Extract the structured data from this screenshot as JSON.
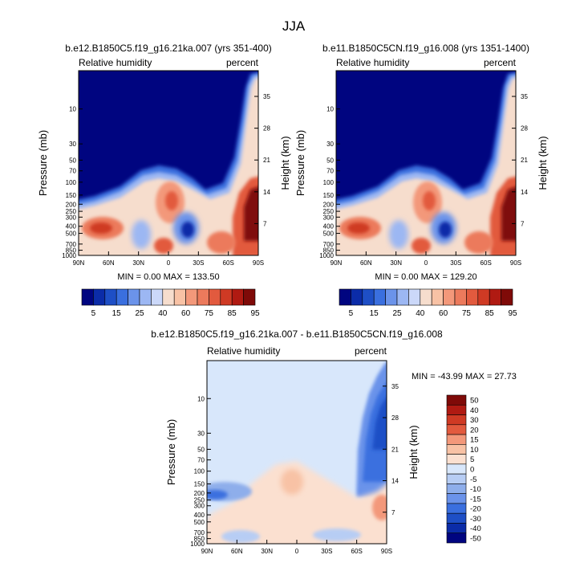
{
  "figure": {
    "title": "JJA"
  },
  "panels": [
    {
      "id": "panel-left",
      "case_title": "b.e12.B1850C5.f19_g16.21ka.007 (yrs 351-400)",
      "left_label": "Relative humidity",
      "right_label": "percent",
      "y_label": "Pressure (mb)",
      "y2_label": "Height (km)",
      "stats": "MIN =   0.00  MAX = 133.50"
    },
    {
      "id": "panel-right",
      "case_title": "b.e11.B1850C5CN.f19_g16.008 (yrs 1351-1400)",
      "left_label": "Relative humidity",
      "right_label": "percent",
      "y_label": "Pressure (mb)",
      "y2_label": "Height (km)",
      "stats": "MIN =   0.00  MAX = 129.20"
    },
    {
      "id": "panel-diff",
      "case_title": "b.e12.B1850C5.f19_g16.21ka.007 - b.e11.B1850C5CN.f19_g16.008",
      "left_label": "Relative humidity",
      "right_label": "percent",
      "y_label": "Pressure (mb)",
      "y2_label": "Height (km)",
      "stats": "MIN = -43.99  MAX =  27.73"
    }
  ],
  "chart_data": [
    {
      "type": "heatmap",
      "panel": "panel-left",
      "title": "b.e12.B1850C5.f19_g16.21ka.007 (yrs 351-400)",
      "variable": "Relative humidity",
      "units": "percent",
      "xlabel": "",
      "ylabel": "Pressure (mb)",
      "y2label": "Height (km)",
      "x_ticks": [
        "90N",
        "60N",
        "30N",
        "0",
        "30S",
        "60S",
        "90S"
      ],
      "y_ticks": [
        "10",
        "30",
        "50",
        "70",
        "100",
        "150",
        "200",
        "250",
        "300",
        "400",
        "500",
        "700",
        "850",
        "1000"
      ],
      "y2_ticks": [
        "35",
        "28",
        "21",
        "14",
        "7"
      ],
      "min": 0.0,
      "max": 133.5,
      "levels": [
        5,
        10,
        15,
        20,
        25,
        30,
        40,
        50,
        60,
        70,
        75,
        80,
        85,
        90,
        95
      ],
      "features": [
        {
          "lat": -5,
          "p": 220,
          "value": 80
        },
        {
          "lat": 45,
          "p": 420,
          "value": 85
        },
        {
          "lat": -75,
          "p": 300,
          "value": 100
        },
        {
          "lat": 25,
          "p": 400,
          "value": 20
        },
        {
          "lat": -20,
          "p": 400,
          "value": 10
        },
        {
          "lat": -2,
          "p": 700,
          "value": 80
        },
        {
          "lat": -60,
          "p": 600,
          "value": 80
        },
        {
          "lat": 0,
          "p": 10,
          "value": 2
        }
      ]
    },
    {
      "type": "heatmap",
      "panel": "panel-right",
      "title": "b.e11.B1850C5CN.f19_g16.008 (yrs 1351-1400)",
      "variable": "Relative humidity",
      "units": "percent",
      "xlabel": "",
      "ylabel": "Pressure (mb)",
      "y2label": "Height (km)",
      "x_ticks": [
        "90N",
        "60N",
        "30N",
        "0",
        "30S",
        "60S",
        "90S"
      ],
      "y_ticks": [
        "10",
        "30",
        "50",
        "70",
        "100",
        "150",
        "200",
        "250",
        "300",
        "400",
        "500",
        "700",
        "850",
        "1000"
      ],
      "y2_ticks": [
        "35",
        "28",
        "21",
        "14",
        "7"
      ],
      "min": 0.0,
      "max": 129.2,
      "levels": [
        5,
        10,
        15,
        20,
        25,
        30,
        40,
        50,
        60,
        70,
        75,
        80,
        85,
        90,
        95
      ],
      "features": [
        {
          "lat": -5,
          "p": 220,
          "value": 80
        },
        {
          "lat": 45,
          "p": 420,
          "value": 85
        },
        {
          "lat": -75,
          "p": 300,
          "value": 100
        },
        {
          "lat": 25,
          "p": 400,
          "value": 20
        },
        {
          "lat": -20,
          "p": 400,
          "value": 10
        },
        {
          "lat": -2,
          "p": 700,
          "value": 80
        },
        {
          "lat": -60,
          "p": 600,
          "value": 80
        },
        {
          "lat": 0,
          "p": 10,
          "value": 2
        }
      ]
    },
    {
      "type": "heatmap",
      "panel": "panel-diff",
      "title": "b.e12.B1850C5.f19_g16.21ka.007 - b.e11.B1850C5CN.f19_g16.008",
      "variable": "Relative humidity",
      "units": "percent",
      "xlabel": "",
      "ylabel": "Pressure (mb)",
      "y2label": "Height (km)",
      "x_ticks": [
        "90N",
        "60N",
        "30N",
        "0",
        "30S",
        "60S",
        "90S"
      ],
      "y_ticks": [
        "10",
        "30",
        "50",
        "70",
        "100",
        "150",
        "200",
        "250",
        "300",
        "400",
        "500",
        "700",
        "850",
        "1000"
      ],
      "y2_ticks": [
        "35",
        "28",
        "21",
        "14",
        "7"
      ],
      "min": -43.99,
      "max": 27.73,
      "levels": [
        -50,
        -40,
        -30,
        -20,
        -15,
        -10,
        -5,
        0,
        5,
        10,
        15,
        20,
        30,
        40,
        50
      ],
      "features": [
        {
          "lat": -78,
          "p": 30,
          "value": -35
        },
        {
          "lat": 70,
          "p": 230,
          "value": -15
        },
        {
          "lat": 5,
          "p": 300,
          "value": 4
        },
        {
          "lat": -85,
          "p": 420,
          "value": 10
        },
        {
          "lat": 40,
          "p": 900,
          "value": -8
        }
      ]
    }
  ],
  "colorbars": {
    "top_left": {
      "labels": [
        "5",
        "15",
        "25",
        "40",
        "60",
        "75",
        "85",
        "95"
      ]
    },
    "top_right": {
      "labels": [
        "5",
        "15",
        "25",
        "40",
        "60",
        "75",
        "85",
        "95"
      ]
    },
    "diff": {
      "labels": [
        "50",
        "40",
        "30",
        "20",
        "15",
        "10",
        "5",
        "0",
        "-5",
        "-10",
        "-15",
        "-20",
        "-30",
        "-40",
        "-50"
      ]
    }
  },
  "colors": {
    "abs_palette": [
      "#000580",
      "#0b2ca8",
      "#1e4fc6",
      "#3a6fdf",
      "#6b93ea",
      "#9cb7f3",
      "#cbd8f9",
      "#f6ddcd",
      "#f8c2a5",
      "#f3987a",
      "#ec7a5c",
      "#e25a3e",
      "#cf3a24",
      "#b01a12",
      "#7f0a08"
    ],
    "diff_palette": [
      "#7f0a08",
      "#b01a12",
      "#cf3a24",
      "#e25a3e",
      "#f3987a",
      "#f8c2a5",
      "#fbe0d0",
      "#d8e7fb",
      "#b7cdf4",
      "#8eaeeb",
      "#6b93ea",
      "#3a6fdf",
      "#1e4fc6",
      "#0b2ca8",
      "#000580"
    ]
  }
}
